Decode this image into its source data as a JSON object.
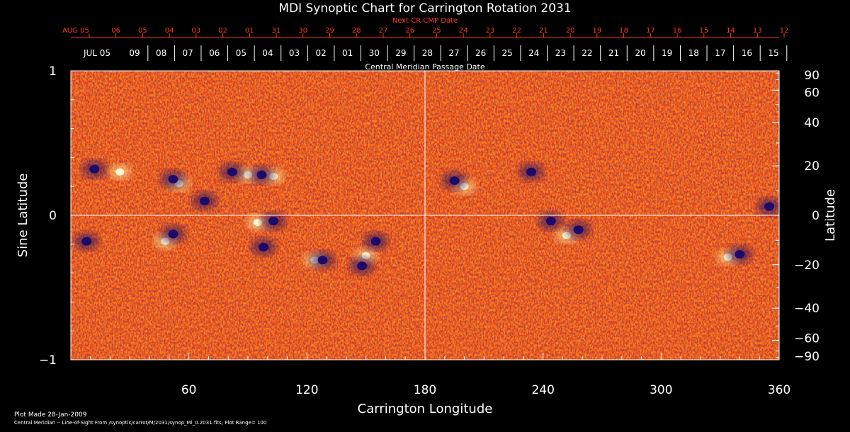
{
  "chart_data": {
    "type": "heatmap",
    "title": "MDI Synoptic Chart for Carrington Rotation 2031",
    "xlabel": "Carrington Longitude",
    "ylabel_left": "Sine Latitude",
    "ylabel_right": "Latitude",
    "xlim": [
      0,
      360
    ],
    "ylim": [
      -1,
      1
    ],
    "x_ticks": [
      60,
      120,
      180,
      240,
      300,
      360
    ],
    "x_minor_step": 10,
    "left_ticks": [
      {
        "v": 1,
        "label": "1"
      },
      {
        "v": 0,
        "label": "0"
      },
      {
        "v": -1,
        "label": "−1"
      }
    ],
    "left_minor_step": 0.2,
    "right_ticks": [
      {
        "deg": 90,
        "label": "90"
      },
      {
        "deg": 60,
        "label": "60"
      },
      {
        "deg": 40,
        "label": "40"
      },
      {
        "deg": 20,
        "label": "20"
      },
      {
        "deg": 0,
        "label": "0"
      },
      {
        "deg": -20,
        "label": "−20"
      },
      {
        "deg": -40,
        "label": "−40"
      },
      {
        "deg": -60,
        "label": "−60"
      },
      {
        "deg": -90,
        "label": "−90"
      }
    ],
    "top_red_axis": {
      "label": "Next CR CMP Date",
      "labels": [
        "AUG 05",
        "06",
        "05",
        "04",
        "03",
        "02",
        "01",
        "31",
        "30",
        "29",
        "28",
        "27",
        "26",
        "25",
        "24",
        "23",
        "22",
        "21",
        "20",
        "19",
        "18",
        "17",
        "16",
        "15",
        "14",
        "13",
        "12"
      ]
    },
    "top_white_axis": {
      "label": "Central Meridian Passage Date",
      "labels": [
        "JUL 05",
        "09",
        "08",
        "07",
        "06",
        "05",
        "04",
        "03",
        "02",
        "01",
        "30",
        "29",
        "28",
        "27",
        "26",
        "25",
        "24",
        "23",
        "22",
        "21",
        "20",
        "19",
        "18",
        "17",
        "16",
        "15"
      ]
    },
    "crosshair": {
      "x": 180,
      "y": 0
    },
    "background_color": "#ff4a10",
    "positive_color": "#fff8d0",
    "negative_color": "#1a0a6a",
    "regions": [
      {
        "lon": 25,
        "sinlat": 0.3,
        "pol": "pos"
      },
      {
        "lon": 12,
        "sinlat": 0.32,
        "pol": "neg"
      },
      {
        "lon": 55,
        "sinlat": 0.22,
        "pol": "pos"
      },
      {
        "lon": 52,
        "sinlat": 0.25,
        "pol": "neg"
      },
      {
        "lon": 68,
        "sinlat": 0.1,
        "pol": "neg"
      },
      {
        "lon": 90,
        "sinlat": 0.28,
        "pol": "pos"
      },
      {
        "lon": 82,
        "sinlat": 0.3,
        "pol": "neg"
      },
      {
        "lon": 103,
        "sinlat": 0.27,
        "pol": "pos"
      },
      {
        "lon": 97,
        "sinlat": 0.28,
        "pol": "neg"
      },
      {
        "lon": 48,
        "sinlat": -0.18,
        "pol": "pos"
      },
      {
        "lon": 52,
        "sinlat": -0.13,
        "pol": "neg"
      },
      {
        "lon": 95,
        "sinlat": -0.05,
        "pol": "pos"
      },
      {
        "lon": 103,
        "sinlat": -0.04,
        "pol": "neg"
      },
      {
        "lon": 98,
        "sinlat": -0.22,
        "pol": "neg"
      },
      {
        "lon": 124,
        "sinlat": -0.31,
        "pol": "pos"
      },
      {
        "lon": 128,
        "sinlat": -0.31,
        "pol": "neg"
      },
      {
        "lon": 150,
        "sinlat": -0.28,
        "pol": "pos"
      },
      {
        "lon": 155,
        "sinlat": -0.18,
        "pol": "neg"
      },
      {
        "lon": 148,
        "sinlat": -0.35,
        "pol": "neg"
      },
      {
        "lon": 8,
        "sinlat": -0.18,
        "pol": "neg"
      },
      {
        "lon": 200,
        "sinlat": 0.2,
        "pol": "pos"
      },
      {
        "lon": 195,
        "sinlat": 0.24,
        "pol": "neg"
      },
      {
        "lon": 234,
        "sinlat": 0.3,
        "pol": "neg"
      },
      {
        "lon": 252,
        "sinlat": -0.14,
        "pol": "pos"
      },
      {
        "lon": 258,
        "sinlat": -0.1,
        "pol": "neg"
      },
      {
        "lon": 244,
        "sinlat": -0.04,
        "pol": "neg"
      },
      {
        "lon": 334,
        "sinlat": -0.29,
        "pol": "pos"
      },
      {
        "lon": 340,
        "sinlat": -0.27,
        "pol": "neg"
      },
      {
        "lon": 355,
        "sinlat": 0.06,
        "pol": "neg"
      }
    ]
  },
  "footer": {
    "plot_made": "Plot Made 28-Jan-2009",
    "note": "Central Meridian -- Line-of-Sight From /synoptic/carrot/M/2031/synop_Ml_0.2031.fits; Plot Range=  100"
  }
}
